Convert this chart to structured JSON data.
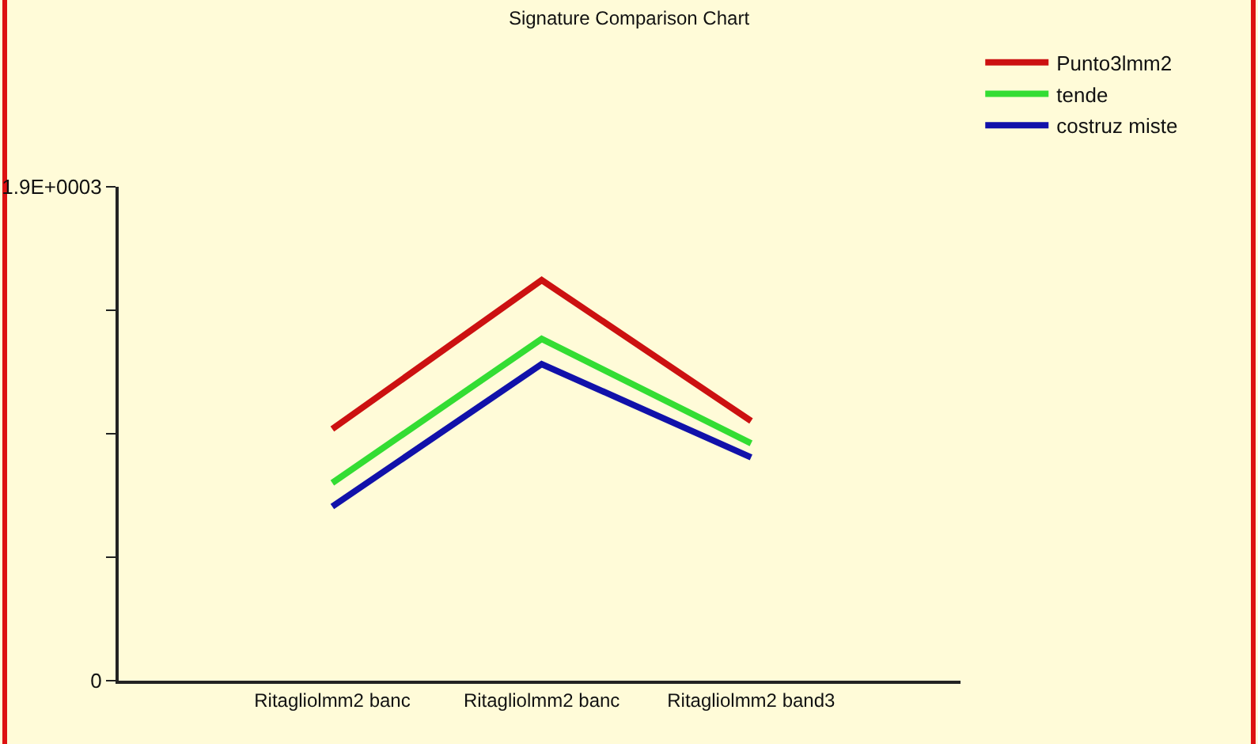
{
  "chart_data": {
    "type": "line",
    "title": "Signature Comparison Chart",
    "categories": [
      "Ritagliolmm2 banc",
      "Ritagliolmm2 banc",
      "Ritagliolmm2 band3"
    ],
    "series": [
      {
        "name": "Punto3lmm2",
        "color": "#cc1111",
        "values": [
          968,
          1541,
          999
        ]
      },
      {
        "name": "tende",
        "color": "#33dd33",
        "values": [
          761,
          1315,
          913
        ]
      },
      {
        "name": "costruz miste",
        "color": "#1111aa",
        "values": [
          670,
          1218,
          859
        ]
      }
    ],
    "ylim": [
      0,
      1900
    ],
    "yticks": [
      0,
      {
        "value": 475,
        "label": null
      },
      {
        "value": 950,
        "label": null
      },
      {
        "value": 1425,
        "label": null
      },
      {
        "value": 1900,
        "label": "1.9E+0003"
      }
    ],
    "grid": false,
    "legend": "top right",
    "marker": "none",
    "line_style": "solid"
  }
}
